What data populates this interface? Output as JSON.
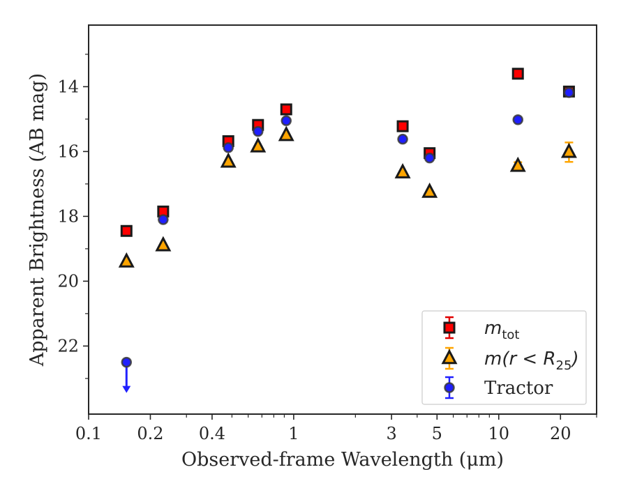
{
  "chart_data": {
    "type": "scatter",
    "xlabel": "Observed-frame Wavelength (μm)",
    "ylabel": "Apparent Brightness (AB mag)",
    "x_scale": "log",
    "xlim": [
      0.1,
      30
    ],
    "ylim": [
      24.1,
      12.1
    ],
    "y_inverted": true,
    "x_ticks": [
      0.1,
      0.2,
      0.4,
      1,
      3,
      5,
      10,
      20
    ],
    "x_tick_labels": [
      "0.1",
      "0.2",
      "0.4",
      "1",
      "3",
      "5",
      "10",
      "20"
    ],
    "y_ticks": [
      14,
      16,
      18,
      20,
      22
    ],
    "y_tick_labels": [
      "14",
      "16",
      "18",
      "20",
      "22"
    ],
    "grid": false,
    "legend_position": "lower right",
    "series": [
      {
        "name": "m_tot",
        "legend_label": "m",
        "legend_sub": "tot",
        "marker": "square",
        "color": "#ff0000",
        "edge": "#1a1a1a",
        "errcolor": "#e00000",
        "points": [
          {
            "x": 0.153,
            "y": 18.45
          },
          {
            "x": 0.231,
            "y": 17.85
          },
          {
            "x": 0.48,
            "y": 15.68
          },
          {
            "x": 0.67,
            "y": 15.18
          },
          {
            "x": 0.92,
            "y": 14.7
          },
          {
            "x": 3.4,
            "y": 15.22
          },
          {
            "x": 4.6,
            "y": 16.05
          },
          {
            "x": 12.4,
            "y": 13.6
          },
          {
            "x": 22.0,
            "y": 14.15,
            "err": 0.1
          }
        ]
      },
      {
        "name": "m(r < R25)",
        "legend_label": "m(r < R",
        "legend_sub": "25",
        "legend_tail": ")",
        "marker": "triangle",
        "color": "#ffa500",
        "edge": "#1a1a1a",
        "errcolor": "#ffa500",
        "points": [
          {
            "x": 0.153,
            "y": 19.4
          },
          {
            "x": 0.231,
            "y": 18.9
          },
          {
            "x": 0.48,
            "y": 16.32
          },
          {
            "x": 0.67,
            "y": 15.85
          },
          {
            "x": 0.92,
            "y": 15.5
          },
          {
            "x": 3.4,
            "y": 16.65
          },
          {
            "x": 4.6,
            "y": 17.25
          },
          {
            "x": 12.4,
            "y": 16.45,
            "err": 0.12
          },
          {
            "x": 22.0,
            "y": 16.02,
            "err": 0.3
          }
        ]
      },
      {
        "name": "Tractor",
        "legend_label": "Tractor",
        "marker": "circle",
        "color": "#1f1fff",
        "edge": "#3a3a3a",
        "errcolor": "#2020ff",
        "points": [
          {
            "x": 0.153,
            "y": 22.5,
            "upper_limit": true
          },
          {
            "x": 0.231,
            "y": 18.1
          },
          {
            "x": 0.48,
            "y": 15.88
          },
          {
            "x": 0.67,
            "y": 15.38
          },
          {
            "x": 0.92,
            "y": 15.05
          },
          {
            "x": 3.4,
            "y": 15.62
          },
          {
            "x": 4.6,
            "y": 16.2
          },
          {
            "x": 12.4,
            "y": 15.02
          },
          {
            "x": 22.0,
            "y": 14.18
          }
        ]
      }
    ]
  }
}
